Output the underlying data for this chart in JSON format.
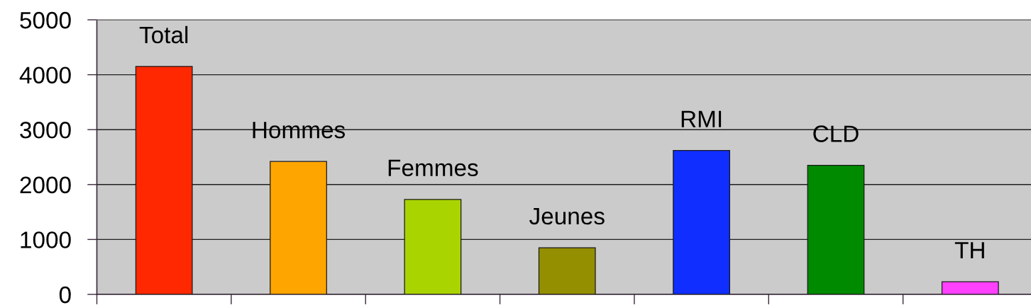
{
  "chart_data": {
    "type": "bar",
    "categories": [
      "Total",
      "Hommes",
      "Femmes",
      "Jeunes",
      "RMI",
      "CLD",
      "TH"
    ],
    "values": [
      4150,
      2420,
      1730,
      850,
      2620,
      2350,
      230
    ],
    "colors": [
      "#ff2800",
      "#ffa500",
      "#aad400",
      "#948f00",
      "#0f2eff",
      "#008a00",
      "#ff40ff"
    ],
    "ylim": [
      0,
      5000
    ],
    "yticks": [
      0,
      1000,
      2000,
      3000,
      4000,
      5000
    ],
    "grid": "y",
    "tick_labels": "y"
  }
}
